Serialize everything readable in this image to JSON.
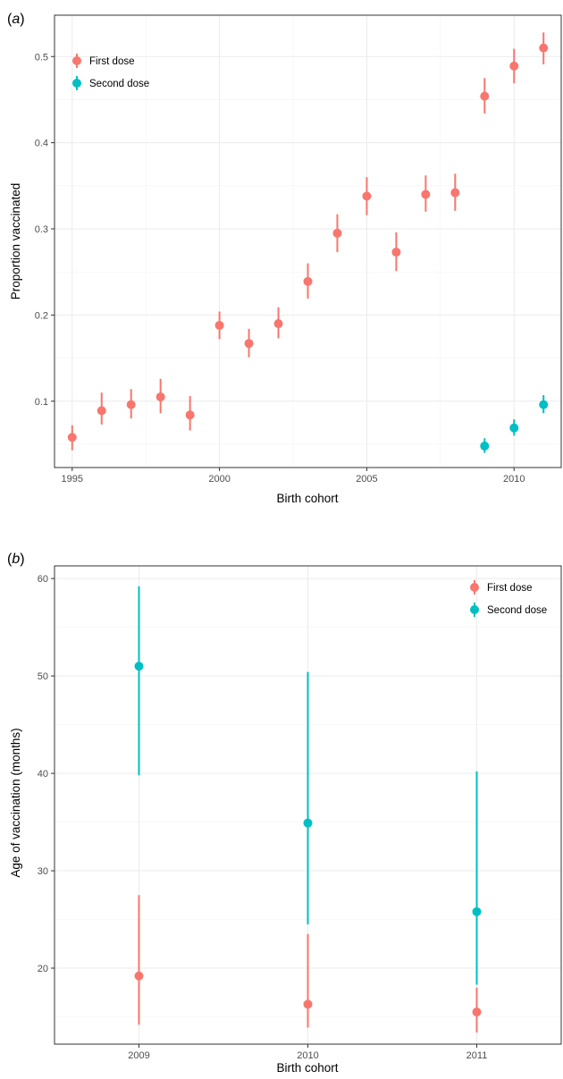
{
  "colors": {
    "first_dose": "#F8766D",
    "second_dose": "#00BFC4"
  },
  "chart_data": [
    {
      "panel": "(a)",
      "type": "scatter",
      "xlabel": "Birth cohort",
      "ylabel": "Proportion vaccinated",
      "xlim": [
        1994.4,
        2011.6
      ],
      "ylim": [
        0.023,
        0.548
      ],
      "x_ticks": [
        1995,
        2000,
        2005,
        2010
      ],
      "y_ticks": [
        0.1,
        0.2,
        0.3,
        0.4,
        0.5
      ],
      "y_tick_labels": [
        "0.1",
        "0.2",
        "0.3",
        "0.4",
        "0.5"
      ],
      "legend": {
        "position": "top-left",
        "entries": [
          "First dose",
          "Second dose"
        ]
      },
      "series": [
        {
          "name": "First dose",
          "color": "#F8766D",
          "points": [
            {
              "x": 1995,
              "y": 0.058,
              "lo": 0.043,
              "hi": 0.072
            },
            {
              "x": 1996,
              "y": 0.089,
              "lo": 0.073,
              "hi": 0.11
            },
            {
              "x": 1997,
              "y": 0.096,
              "lo": 0.08,
              "hi": 0.114
            },
            {
              "x": 1998,
              "y": 0.105,
              "lo": 0.086,
              "hi": 0.126
            },
            {
              "x": 1999,
              "y": 0.084,
              "lo": 0.066,
              "hi": 0.106
            },
            {
              "x": 2000,
              "y": 0.188,
              "lo": 0.172,
              "hi": 0.204
            },
            {
              "x": 2001,
              "y": 0.167,
              "lo": 0.151,
              "hi": 0.184
            },
            {
              "x": 2002,
              "y": 0.19,
              "lo": 0.173,
              "hi": 0.209
            },
            {
              "x": 2003,
              "y": 0.239,
              "lo": 0.219,
              "hi": 0.26
            },
            {
              "x": 2004,
              "y": 0.295,
              "lo": 0.273,
              "hi": 0.317
            },
            {
              "x": 2005,
              "y": 0.338,
              "lo": 0.316,
              "hi": 0.36
            },
            {
              "x": 2006,
              "y": 0.273,
              "lo": 0.251,
              "hi": 0.296
            },
            {
              "x": 2007,
              "y": 0.34,
              "lo": 0.32,
              "hi": 0.362
            },
            {
              "x": 2008,
              "y": 0.342,
              "lo": 0.321,
              "hi": 0.364
            },
            {
              "x": 2009,
              "y": 0.454,
              "lo": 0.434,
              "hi": 0.475
            },
            {
              "x": 2010,
              "y": 0.489,
              "lo": 0.469,
              "hi": 0.509
            },
            {
              "x": 2011,
              "y": 0.51,
              "lo": 0.491,
              "hi": 0.528
            }
          ]
        },
        {
          "name": "Second dose",
          "color": "#00BFC4",
          "points": [
            {
              "x": 2009,
              "y": 0.048,
              "lo": 0.04,
              "hi": 0.057
            },
            {
              "x": 2010,
              "y": 0.069,
              "lo": 0.06,
              "hi": 0.079
            },
            {
              "x": 2011,
              "y": 0.096,
              "lo": 0.086,
              "hi": 0.107
            }
          ]
        }
      ]
    },
    {
      "panel": "(b)",
      "type": "scatter",
      "xlabel": "Birth cohort",
      "ylabel": "Age of vaccination (months)",
      "categories": [
        "2009",
        "2010",
        "2011"
      ],
      "ylim": [
        12.2,
        61.3
      ],
      "y_ticks": [
        20,
        30,
        40,
        50,
        60
      ],
      "y_tick_labels": [
        "20",
        "30",
        "40",
        "50",
        "60"
      ],
      "legend": {
        "position": "top-right",
        "entries": [
          "First dose",
          "Second dose"
        ]
      },
      "series": [
        {
          "name": "First dose",
          "color": "#F8766D",
          "points": [
            {
              "x": "2009",
              "y": 19.2,
              "lo": 14.2,
              "hi": 27.5
            },
            {
              "x": "2010",
              "y": 16.3,
              "lo": 13.9,
              "hi": 23.5
            },
            {
              "x": "2011",
              "y": 15.5,
              "lo": 13.4,
              "hi": 18.0
            }
          ]
        },
        {
          "name": "Second dose",
          "color": "#00BFC4",
          "points": [
            {
              "x": "2009",
              "y": 51.0,
              "lo": 39.8,
              "hi": 59.2
            },
            {
              "x": "2010",
              "y": 34.9,
              "lo": 24.5,
              "hi": 50.4
            },
            {
              "x": "2011",
              "y": 25.8,
              "lo": 18.3,
              "hi": 40.2
            }
          ]
        }
      ]
    }
  ]
}
